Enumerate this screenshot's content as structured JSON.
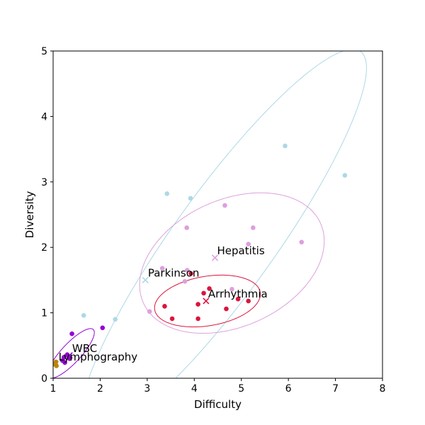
{
  "chart_data": {
    "type": "scatter",
    "title": "",
    "xlabel": "Difficulty",
    "ylabel": "Diversity",
    "xlim": [
      1,
      8
    ],
    "ylim": [
      0,
      5
    ],
    "xticks": [
      "1",
      "2",
      "3",
      "4",
      "5",
      "6",
      "7",
      "8"
    ],
    "yticks": [
      "0",
      "1",
      "2",
      "3",
      "4",
      "5"
    ],
    "grid": false,
    "legend": "none",
    "series": [
      {
        "name": "Parkinson",
        "color": "#add8e6",
        "points": [
          [
            1.65,
            0.96
          ],
          [
            2.32,
            0.9
          ],
          [
            3.42,
            2.82
          ],
          [
            3.92,
            2.75
          ],
          [
            5.93,
            3.55
          ],
          [
            7.2,
            3.1
          ]
        ],
        "centroid": [
          2.96,
          1.5
        ],
        "ellipse": {
          "cx": 4.62,
          "cy": 2.08,
          "rx": 4.13,
          "ry": 0.93,
          "angle_deg": 44
        }
      },
      {
        "name": "Hepatitis",
        "color": "#dda0dd",
        "points": [
          [
            3.05,
            1.02
          ],
          [
            3.32,
            1.68
          ],
          [
            3.8,
            1.48
          ],
          [
            3.84,
            2.3
          ],
          [
            3.85,
            1.65
          ],
          [
            4.65,
            2.64
          ],
          [
            4.8,
            1.36
          ],
          [
            5.15,
            2.05
          ],
          [
            5.25,
            2.3
          ],
          [
            6.28,
            2.08
          ]
        ],
        "centroid": [
          4.44,
          1.84
        ],
        "ellipse": {
          "cx": 4.8,
          "cy": 1.76,
          "rx": 2.0,
          "ry": 1.0,
          "angle_deg": 13
        }
      },
      {
        "name": "Arrhythmia",
        "color": "#dc143c",
        "points": [
          [
            3.37,
            1.1
          ],
          [
            3.53,
            0.91
          ],
          [
            3.93,
            1.6
          ],
          [
            4.08,
            1.13
          ],
          [
            4.08,
            0.91
          ],
          [
            4.2,
            1.3
          ],
          [
            4.32,
            1.37
          ],
          [
            4.68,
            1.06
          ],
          [
            4.93,
            1.21
          ],
          [
            5.15,
            1.18
          ]
        ],
        "centroid": [
          4.25,
          1.18
        ],
        "ellipse": {
          "cx": 4.28,
          "cy": 1.18,
          "rx": 1.13,
          "ry": 0.38,
          "angle_deg": 6
        }
      },
      {
        "name": "WBC",
        "color": "#9400d3",
        "points": [
          [
            1.2,
            0.27
          ],
          [
            1.25,
            0.24
          ],
          [
            1.23,
            0.32
          ],
          [
            1.3,
            0.36
          ],
          [
            1.35,
            0.3
          ],
          [
            1.4,
            0.68
          ],
          [
            2.05,
            0.77
          ]
        ],
        "centroid": [
          1.35,
          0.35
        ],
        "ellipse": {
          "cx": 1.38,
          "cy": 0.38,
          "rx": 0.6,
          "ry": 0.17,
          "angle_deg": 36
        }
      },
      {
        "name": "Lymphography",
        "color": "#b8860b",
        "points": [
          [
            1.05,
            0.22
          ],
          [
            1.07,
            0.19
          ],
          [
            1.06,
            0.25
          ]
        ],
        "centroid": [
          1.05,
          0.22
        ]
      }
    ],
    "annotations": [
      {
        "text": "Parkinson",
        "x": 3.0,
        "y": 1.52
      },
      {
        "text": "Hepatitis",
        "x": 4.47,
        "y": 1.86
      },
      {
        "text": "Arrhythmia",
        "x": 4.28,
        "y": 1.2
      },
      {
        "text": "WBC",
        "x": 1.39,
        "y": 0.37
      },
      {
        "text": "Lymphography",
        "x": 1.1,
        "y": 0.24
      }
    ]
  }
}
